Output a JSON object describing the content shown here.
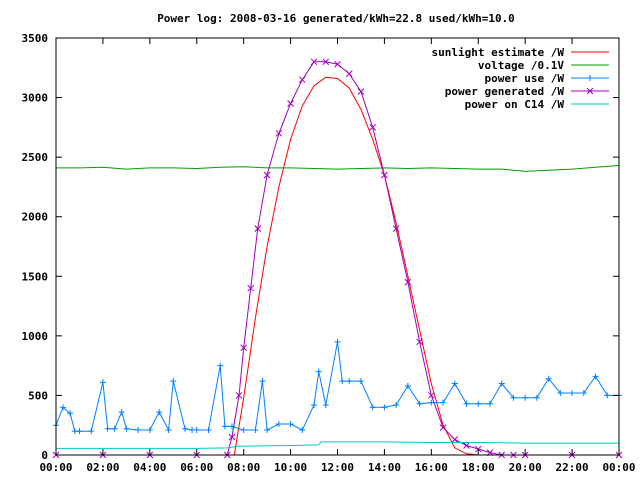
{
  "chart_data": {
    "type": "line",
    "title": "Power log: 2008-03-16 generated/kWh=22.8 used/kWh=10.0",
    "xlabel": "",
    "ylabel": "",
    "xlim": [
      0,
      24
    ],
    "ylim": [
      0,
      3500
    ],
    "x_ticks": [
      0,
      2,
      4,
      6,
      8,
      10,
      12,
      14,
      16,
      18,
      20,
      22,
      24
    ],
    "x_tick_labels": [
      "00:00",
      "02:00",
      "04:00",
      "06:00",
      "08:00",
      "10:00",
      "12:00",
      "14:00",
      "16:00",
      "18:00",
      "20:00",
      "22:00",
      "00:00"
    ],
    "y_ticks": [
      0,
      500,
      1000,
      1500,
      2000,
      2500,
      3000,
      3500
    ],
    "y_tick_labels": [
      "0",
      "500",
      "1000",
      "1500",
      "2000",
      "2500",
      "3000",
      "3500"
    ],
    "grid": false,
    "legend_position": "top-right",
    "series": [
      {
        "name": "sunlight estimate /W",
        "color": "#ff0000",
        "marker": "none",
        "x": [
          7.6,
          8.0,
          8.5,
          9.0,
          9.5,
          10.0,
          10.5,
          11.0,
          11.5,
          12.0,
          12.5,
          13.0,
          13.5,
          14.0,
          14.5,
          15.0,
          15.5,
          16.0,
          16.5,
          17.0,
          17.5,
          18.0
        ],
        "y": [
          0,
          480,
          1150,
          1750,
          2250,
          2650,
          2930,
          3100,
          3170,
          3160,
          3080,
          2900,
          2650,
          2350,
          1950,
          1500,
          1050,
          600,
          250,
          60,
          10,
          0
        ]
      },
      {
        "name": "voltage /0.1V",
        "color": "#00a000",
        "marker": "none",
        "x": [
          0,
          1,
          2,
          3,
          4,
          5,
          6,
          7,
          8,
          9,
          10,
          11,
          12,
          13,
          14,
          15,
          16,
          17,
          18,
          19,
          20,
          21,
          22,
          23,
          24
        ],
        "y": [
          2410,
          2410,
          2415,
          2400,
          2410,
          2410,
          2405,
          2415,
          2420,
          2410,
          2410,
          2405,
          2400,
          2405,
          2410,
          2405,
          2410,
          2405,
          2400,
          2400,
          2380,
          2390,
          2400,
          2415,
          2430
        ]
      },
      {
        "name": "power use /W",
        "color": "#0080ff",
        "marker": "plus",
        "x": [
          0.0,
          0.3,
          0.6,
          0.8,
          1.0,
          1.5,
          2.0,
          2.2,
          2.5,
          2.8,
          3.0,
          3.5,
          4.0,
          4.4,
          4.8,
          5.0,
          5.5,
          5.8,
          6.0,
          6.5,
          7.0,
          7.2,
          7.5,
          8.0,
          8.5,
          8.8,
          9.0,
          9.5,
          10.0,
          10.5,
          11.0,
          11.2,
          11.5,
          12.0,
          12.2,
          12.5,
          13.0,
          13.5,
          14.0,
          14.5,
          15.0,
          15.5,
          16.0,
          16.5,
          17.0,
          17.5,
          18.0,
          18.5,
          19.0,
          19.5,
          20.0,
          20.5,
          21.0,
          21.5,
          22.0,
          22.5,
          23.0,
          23.5,
          24.0
        ],
        "y": [
          250,
          400,
          350,
          200,
          200,
          200,
          610,
          220,
          220,
          360,
          220,
          210,
          210,
          360,
          210,
          620,
          220,
          210,
          210,
          210,
          750,
          240,
          240,
          210,
          210,
          620,
          210,
          260,
          260,
          210,
          420,
          700,
          420,
          950,
          620,
          620,
          620,
          400,
          400,
          420,
          580,
          430,
          440,
          440,
          600,
          430,
          430,
          430,
          600,
          480,
          480,
          480,
          640,
          520,
          520,
          520,
          660,
          500,
          500
        ]
      },
      {
        "name": "power generated /W",
        "color": "#a000c0",
        "marker": "cross",
        "x": [
          0,
          2,
          4,
          6,
          7.3,
          7.5,
          7.8,
          8.0,
          8.3,
          8.6,
          9.0,
          9.5,
          10.0,
          10.5,
          11.0,
          11.5,
          12.0,
          12.5,
          13.0,
          13.5,
          14.0,
          14.5,
          15.0,
          15.5,
          16.0,
          16.5,
          17.0,
          17.5,
          18.0,
          18.5,
          19.0,
          19.5,
          20,
          22,
          24
        ],
        "y": [
          0,
          0,
          0,
          0,
          0,
          150,
          500,
          900,
          1400,
          1900,
          2350,
          2700,
          2950,
          3150,
          3300,
          3300,
          3280,
          3200,
          3050,
          2750,
          2350,
          1900,
          1450,
          950,
          500,
          230,
          130,
          80,
          50,
          20,
          0,
          0,
          0,
          0,
          0
        ]
      },
      {
        "name": "power on C14 /W",
        "color": "#00c8c8",
        "marker": "none",
        "x": [
          0,
          2,
          4,
          6,
          7.3,
          7.8,
          8.0,
          10.0,
          11.2,
          11.3,
          12.0,
          14.0,
          16.0,
          18.0,
          20.0,
          22.0,
          24.0
        ],
        "y": [
          55,
          55,
          55,
          55,
          60,
          75,
          75,
          80,
          85,
          110,
          110,
          110,
          105,
          105,
          100,
          100,
          100
        ]
      }
    ]
  }
}
